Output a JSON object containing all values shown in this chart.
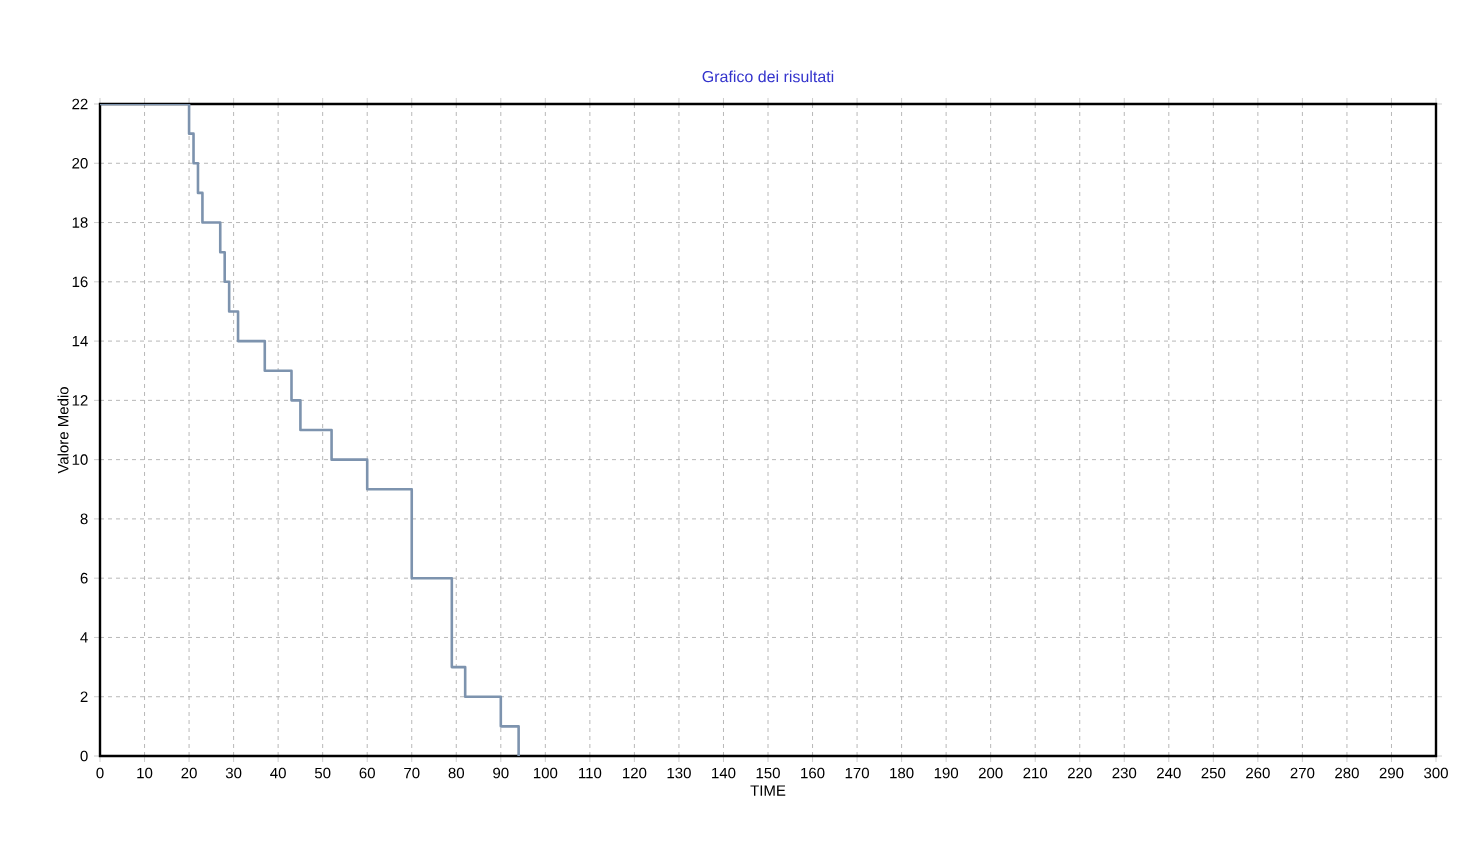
{
  "chart_data": {
    "type": "step",
    "title": "Grafico dei risultati",
    "xlabel": "TIME",
    "ylabel": "Valore Medio",
    "x": [
      0,
      20,
      21,
      22,
      23,
      27,
      28,
      29,
      31,
      37,
      43,
      45,
      52,
      60,
      70,
      79,
      82,
      90,
      94
    ],
    "series": [
      {
        "color": "#7d93ae",
        "values": [
          22,
          21,
          20,
          19,
          18,
          17,
          16,
          15,
          14,
          13,
          12,
          11,
          10,
          9,
          6,
          3,
          2,
          1,
          0
        ]
      }
    ],
    "xlim": [
      0,
      300
    ],
    "ylim": [
      0,
      22
    ],
    "xticks": [
      0,
      10,
      20,
      30,
      40,
      50,
      60,
      70,
      80,
      90,
      100,
      110,
      120,
      130,
      140,
      150,
      160,
      170,
      180,
      190,
      200,
      210,
      220,
      230,
      240,
      250,
      260,
      270,
      280,
      290,
      300
    ],
    "yticks": [
      0,
      2,
      4,
      6,
      8,
      10,
      12,
      14,
      16,
      18,
      20,
      22
    ],
    "grid": true,
    "marker": "none",
    "line_style": "solid"
  }
}
